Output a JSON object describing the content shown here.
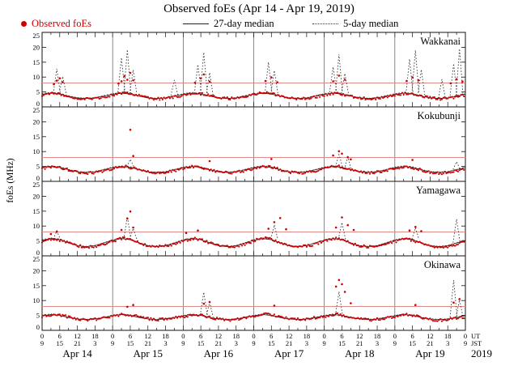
{
  "title": "Observed foEs (Apr 14 - Apr 19, 2019)",
  "legend": {
    "observed": "Observed foEs",
    "median27": "27-day median",
    "median5": "5-day median"
  },
  "axes": {
    "ylabel": "foEs (MHz)",
    "y_ticks": [
      0,
      5,
      10,
      15,
      20,
      25
    ],
    "ylim": [
      0,
      25
    ],
    "ut_tick_values": [
      0,
      6,
      12,
      18
    ],
    "jst_tick_values": [
      9,
      15,
      21,
      3
    ],
    "ut_label": "UT",
    "jst_label": "JST",
    "day_labels": [
      "Apr 14",
      "Apr 15",
      "Apr 16",
      "Apr 17",
      "Apr 18",
      "Apr 19"
    ],
    "year": "2019"
  },
  "colors": {
    "observed": "#cc0000",
    "median27": "#222222",
    "median5": "#333333",
    "threshold": "#e08a8a",
    "frame": "#111111",
    "day_separator": "#555555"
  },
  "threshold_mhz": 8,
  "chart_data": {
    "type": "scatter",
    "title": "Observed foEs (Apr 14 - Apr 19, 2019)",
    "ylabel": "foEs (MHz)",
    "ylim": [
      0,
      25
    ],
    "x_range_hours_ut": [
      0,
      144
    ],
    "x_days": [
      "Apr 14",
      "Apr 15",
      "Apr 16",
      "Apr 17",
      "Apr 18",
      "Apr 19"
    ],
    "obs_step_h": 2,
    "med_step_h": 3,
    "stations": [
      {
        "name": "Wakkanai",
        "obs": [
          3.8,
          4.2,
          4.5,
          4.3,
          3.9,
          3.4,
          2.9,
          2.7,
          2.6,
          2.8,
          3.0,
          3.4,
          4.0,
          4.4,
          4.8,
          4.5,
          4.0,
          3.5,
          3.0,
          2.8,
          2.7,
          2.9,
          3.1,
          3.5,
          3.9,
          4.3,
          4.6,
          4.4,
          4.1,
          3.6,
          3.1,
          2.9,
          2.8,
          3.0,
          3.2,
          3.6,
          4.1,
          4.5,
          4.7,
          4.4,
          4.0,
          3.5,
          3.0,
          2.8,
          2.7,
          2.9,
          3.2,
          3.5,
          4.0,
          4.4,
          4.6,
          4.3,
          3.9,
          3.4,
          3.0,
          2.8,
          2.7,
          2.9,
          3.1,
          3.4,
          3.9,
          4.3,
          4.5,
          4.2,
          3.8,
          3.4,
          3.0,
          2.8,
          2.7,
          2.9,
          3.2,
          3.6,
          4.0
        ],
        "obs_spikes": [
          [
            4,
            7.6
          ],
          [
            5,
            8.8
          ],
          [
            6,
            9.6
          ],
          [
            7,
            8.3
          ],
          [
            26,
            7.8
          ],
          [
            27,
            8.6
          ],
          [
            28,
            10.3
          ],
          [
            29,
            9.1
          ],
          [
            30,
            11.4
          ],
          [
            31,
            8.9
          ],
          [
            52,
            8.1
          ],
          [
            54,
            9.6
          ],
          [
            55,
            10.9
          ],
          [
            57,
            8.5
          ],
          [
            76,
            8.7
          ],
          [
            78,
            9.9
          ],
          [
            80,
            8.3
          ],
          [
            99,
            8.6
          ],
          [
            101,
            10.5
          ],
          [
            103,
            9.1
          ],
          [
            124,
            8.7
          ],
          [
            126,
            9.9
          ],
          [
            128,
            8.9
          ],
          [
            139,
            7.9
          ],
          [
            141,
            9.3
          ],
          [
            143,
            8.5
          ]
        ],
        "med27": [
          4.2,
          4.6,
          4.3,
          3.6,
          3.0,
          2.8,
          3.0,
          3.6,
          4.2,
          4.6,
          4.3,
          3.6,
          3.0,
          2.8,
          3.0,
          3.6,
          4.2,
          4.6,
          4.3,
          3.6,
          3.0,
          2.8,
          3.0,
          3.6,
          4.2,
          4.6,
          4.3,
          3.6,
          3.0,
          2.8,
          3.0,
          3.6,
          4.2,
          4.6,
          4.3,
          3.6,
          3.0,
          2.8,
          3.0,
          3.6,
          4.2,
          4.6,
          4.3,
          3.6,
          3.0,
          2.8,
          3.0,
          3.6,
          4.2
        ],
        "med5": [
          4.4,
          4.9,
          4.5,
          3.7,
          3.1,
          2.9,
          3.1,
          3.8,
          4.4,
          4.9,
          4.5,
          3.7,
          3.1,
          2.9,
          3.1,
          3.8,
          4.4,
          4.9,
          4.5,
          3.7,
          3.1,
          2.9,
          3.1,
          3.8,
          4.4,
          4.9,
          4.5,
          3.7,
          3.1,
          2.9,
          3.1,
          3.8,
          4.4,
          4.9,
          4.5,
          3.7,
          3.1,
          2.9,
          3.1,
          3.8,
          4.4,
          4.9,
          4.5,
          3.7,
          3.1,
          2.9,
          3.1,
          3.8,
          4.4
        ],
        "med5_spikes": [
          [
            5,
            12.8
          ],
          [
            7,
            10.2
          ],
          [
            27,
            16.5
          ],
          [
            29,
            19.2
          ],
          [
            31,
            12.4
          ],
          [
            45,
            9.0
          ],
          [
            53,
            14.2
          ],
          [
            55,
            18.3
          ],
          [
            57,
            11.5
          ],
          [
            77,
            15.0
          ],
          [
            79,
            12.2
          ],
          [
            99,
            13.4
          ],
          [
            101,
            17.6
          ],
          [
            103,
            11.2
          ],
          [
            125,
            16.0
          ],
          [
            127,
            19.0
          ],
          [
            129,
            12.5
          ],
          [
            136,
            9.2
          ],
          [
            140,
            14.5
          ],
          [
            142,
            19.5
          ]
        ]
      },
      {
        "name": "Kokubunji",
        "obs": [
          4.2,
          4.6,
          4.9,
          4.6,
          4.1,
          3.6,
          3.1,
          2.9,
          2.8,
          3.0,
          3.3,
          3.7,
          4.3,
          4.8,
          5.1,
          4.7,
          4.2,
          3.7,
          3.2,
          3.0,
          2.9,
          3.1,
          3.4,
          3.8,
          4.4,
          4.9,
          5.0,
          4.6,
          4.2,
          3.7,
          3.2,
          3.0,
          2.9,
          3.1,
          3.4,
          3.8,
          4.3,
          4.7,
          5.0,
          4.7,
          4.2,
          3.6,
          3.1,
          2.9,
          2.8,
          3.0,
          3.3,
          3.7,
          4.5,
          5.0,
          5.2,
          4.8,
          4.3,
          3.7,
          3.2,
          3.0,
          2.9,
          3.1,
          3.4,
          3.8,
          4.2,
          4.6,
          4.8,
          4.5,
          4.1,
          3.6,
          3.1,
          2.9,
          2.8,
          3.0,
          3.3,
          3.7,
          4.1
        ],
        "obs_spikes": [
          [
            30,
            17.3
          ],
          [
            31,
            8.5
          ],
          [
            57,
            6.8
          ],
          [
            78,
            7.5
          ],
          [
            99,
            8.7
          ],
          [
            101,
            10.1
          ],
          [
            102,
            9.3
          ],
          [
            104,
            8.1
          ],
          [
            105,
            7.4
          ],
          [
            126,
            7.2
          ]
        ],
        "med27": [
          4.6,
          5.0,
          4.7,
          3.9,
          3.2,
          3.0,
          3.2,
          3.9,
          4.6,
          5.0,
          4.7,
          3.9,
          3.2,
          3.0,
          3.2,
          3.9,
          4.6,
          5.0,
          4.7,
          3.9,
          3.2,
          3.0,
          3.2,
          3.9,
          4.6,
          5.0,
          4.7,
          3.9,
          3.2,
          3.0,
          3.2,
          3.9,
          4.6,
          5.0,
          4.7,
          3.9,
          3.2,
          3.0,
          3.2,
          3.9,
          4.6,
          5.0,
          4.7,
          3.9,
          3.2,
          3.0,
          3.2,
          3.9,
          4.6
        ],
        "med5": [
          4.8,
          5.2,
          4.9,
          4.0,
          3.3,
          3.1,
          3.3,
          4.0,
          4.8,
          5.2,
          4.9,
          4.0,
          3.3,
          3.1,
          3.3,
          4.0,
          4.8,
          5.2,
          4.9,
          4.0,
          3.3,
          3.1,
          3.3,
          4.0,
          4.8,
          5.2,
          4.9,
          4.0,
          3.3,
          3.1,
          3.3,
          4.0,
          4.8,
          5.2,
          4.9,
          4.0,
          3.3,
          3.1,
          3.3,
          4.0,
          4.8,
          5.2,
          4.9,
          4.0,
          3.3,
          3.1,
          3.3,
          4.0,
          4.8
        ],
        "med5_spikes": [
          [
            30,
            7.4
          ],
          [
            101,
            9.0
          ],
          [
            104,
            8.2
          ],
          [
            141,
            6.6
          ]
        ]
      },
      {
        "name": "Yamagawa",
        "obs": [
          4.8,
          5.4,
          5.8,
          5.3,
          4.6,
          4.0,
          3.4,
          3.1,
          3.0,
          3.2,
          3.6,
          4.2,
          5.0,
          5.6,
          6.0,
          5.5,
          4.8,
          4.1,
          3.5,
          3.2,
          3.1,
          3.3,
          3.7,
          4.3,
          4.9,
          5.5,
          5.8,
          5.4,
          4.7,
          4.0,
          3.4,
          3.1,
          3.0,
          3.2,
          3.6,
          4.2,
          5.1,
          5.7,
          6.1,
          5.6,
          4.8,
          4.1,
          3.5,
          3.2,
          3.1,
          3.3,
          3.7,
          4.3,
          5.0,
          5.6,
          5.9,
          5.4,
          4.7,
          4.0,
          3.4,
          3.1,
          3.0,
          3.2,
          3.6,
          4.2,
          4.8,
          5.3,
          5.7,
          5.2,
          4.6,
          3.9,
          3.3,
          3.1,
          3.0,
          3.2,
          3.6,
          4.1,
          4.6
        ],
        "obs_spikes": [
          [
            3,
            7.3
          ],
          [
            5,
            8.1
          ],
          [
            27,
            8.7
          ],
          [
            29,
            12.5
          ],
          [
            30,
            14.9
          ],
          [
            31,
            9.5
          ],
          [
            49,
            7.7
          ],
          [
            53,
            8.5
          ],
          [
            77,
            9.1
          ],
          [
            79,
            11.3
          ],
          [
            81,
            12.7
          ],
          [
            83,
            8.9
          ],
          [
            100,
            9.5
          ],
          [
            102,
            12.9
          ],
          [
            104,
            10.3
          ],
          [
            106,
            8.7
          ],
          [
            125,
            8.5
          ],
          [
            127,
            9.7
          ],
          [
            129,
            8.3
          ]
        ],
        "med27": [
          5.2,
          5.8,
          5.4,
          4.3,
          3.4,
          3.1,
          3.4,
          4.3,
          5.2,
          5.8,
          5.4,
          4.3,
          3.4,
          3.1,
          3.4,
          4.3,
          5.2,
          5.8,
          5.4,
          4.3,
          3.4,
          3.1,
          3.4,
          4.3,
          5.2,
          5.8,
          5.4,
          4.3,
          3.4,
          3.1,
          3.4,
          4.3,
          5.2,
          5.8,
          5.4,
          4.3,
          3.4,
          3.1,
          3.4,
          4.3,
          5.2,
          5.8,
          5.4,
          4.3,
          3.4,
          3.1,
          3.4,
          4.3,
          5.2
        ],
        "med5": [
          5.4,
          6.0,
          5.6,
          4.4,
          3.5,
          3.2,
          3.5,
          4.4,
          5.4,
          6.0,
          5.6,
          4.4,
          3.5,
          3.2,
          3.5,
          4.4,
          5.4,
          6.0,
          5.6,
          4.4,
          3.5,
          3.2,
          3.5,
          4.4,
          5.4,
          6.0,
          5.6,
          4.4,
          3.5,
          3.2,
          3.5,
          4.4,
          5.4,
          6.0,
          5.6,
          4.4,
          3.5,
          3.2,
          3.5,
          4.4,
          5.4,
          6.0,
          5.6,
          4.4,
          3.5,
          3.2,
          3.5,
          4.4,
          5.4
        ],
        "med5_spikes": [
          [
            5,
            8.4
          ],
          [
            29,
            13.2
          ],
          [
            31,
            9.2
          ],
          [
            79,
            10.4
          ],
          [
            102,
            11.2
          ],
          [
            127,
            9.4
          ],
          [
            141,
            12.3
          ]
        ]
      },
      {
        "name": "Okinawa",
        "obs": [
          4.6,
          5.0,
          5.3,
          5.1,
          4.7,
          4.2,
          3.8,
          3.6,
          3.5,
          3.7,
          4.0,
          4.3,
          4.7,
          5.1,
          5.4,
          5.2,
          4.8,
          4.3,
          3.9,
          3.7,
          3.6,
          3.8,
          4.1,
          4.4,
          4.6,
          5.0,
          5.3,
          5.1,
          4.7,
          4.2,
          3.8,
          3.6,
          3.5,
          3.7,
          4.0,
          4.3,
          4.8,
          5.2,
          5.5,
          5.2,
          4.8,
          4.3,
          3.9,
          3.7,
          3.6,
          3.8,
          4.1,
          4.4,
          4.7,
          5.1,
          5.4,
          5.1,
          4.7,
          4.2,
          3.8,
          3.6,
          3.5,
          3.7,
          4.0,
          4.3,
          4.6,
          5.0,
          5.2,
          5.0,
          4.6,
          4.1,
          3.7,
          3.5,
          3.4,
          3.6,
          3.9,
          4.2,
          4.5
        ],
        "obs_spikes": [
          [
            29,
            7.9
          ],
          [
            31,
            8.5
          ],
          [
            55,
            8.9
          ],
          [
            57,
            9.5
          ],
          [
            79,
            8.3
          ],
          [
            100,
            14.7
          ],
          [
            101,
            16.9
          ],
          [
            102,
            15.5
          ],
          [
            103,
            12.9
          ],
          [
            105,
            9.1
          ],
          [
            127,
            8.5
          ],
          [
            140,
            9.3
          ],
          [
            142,
            10.5
          ]
        ],
        "med27": [
          4.9,
          5.3,
          5.0,
          4.3,
          3.8,
          3.6,
          3.8,
          4.3,
          4.9,
          5.3,
          5.0,
          4.3,
          3.8,
          3.6,
          3.8,
          4.3,
          4.9,
          5.3,
          5.0,
          4.3,
          3.8,
          3.6,
          3.8,
          4.3,
          4.9,
          5.3,
          5.0,
          4.3,
          3.8,
          3.6,
          3.8,
          4.3,
          4.9,
          5.3,
          5.0,
          4.3,
          3.8,
          3.6,
          3.8,
          4.3,
          4.9,
          5.3,
          5.0,
          4.3,
          3.8,
          3.6,
          3.8,
          4.3,
          4.9
        ],
        "med5": [
          5.0,
          5.5,
          5.1,
          4.4,
          3.9,
          3.7,
          3.9,
          4.4,
          5.0,
          5.5,
          5.1,
          4.4,
          3.9,
          3.7,
          3.9,
          4.4,
          5.0,
          5.5,
          5.1,
          4.4,
          3.9,
          3.7,
          3.9,
          4.4,
          5.0,
          5.5,
          5.1,
          4.4,
          3.9,
          3.7,
          3.9,
          4.4,
          5.0,
          5.5,
          5.1,
          4.4,
          3.9,
          3.7,
          3.9,
          4.4,
          5.0,
          5.5,
          5.1,
          4.4,
          3.9,
          3.7,
          3.9,
          4.4,
          5.0
        ],
        "med5_spikes": [
          [
            55,
            12.8
          ],
          [
            57,
            9.4
          ],
          [
            101,
            13.0
          ],
          [
            140,
            16.8
          ],
          [
            142,
            10.2
          ]
        ]
      }
    ]
  }
}
